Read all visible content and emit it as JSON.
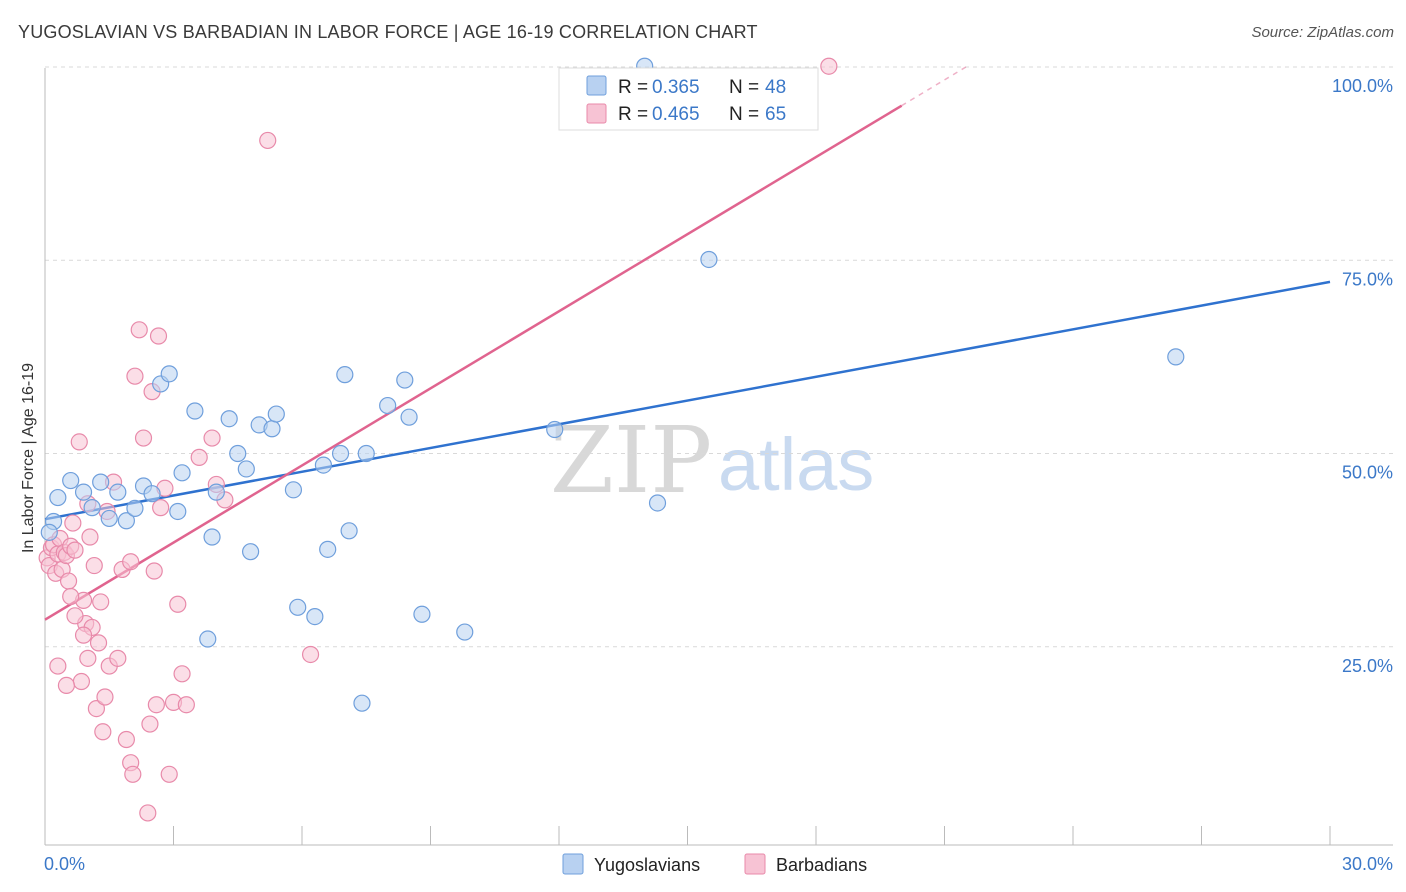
{
  "header": {
    "title": "YUGOSLAVIAN VS BARBADIAN IN LABOR FORCE | AGE 16-19 CORRELATION CHART",
    "source": "Source: ZipAtlas.com"
  },
  "watermark": {
    "zip": "ZIP",
    "atlas": "atlas"
  },
  "colors": {
    "blue_fill": "#b8d1f1",
    "blue_stroke": "#6f9fdc",
    "blue_line": "#2f72cf",
    "pink_fill": "#f7c3d4",
    "pink_stroke": "#e88aaa",
    "pink_line": "#e0648f",
    "tick_text": "#3b78c8",
    "grid": "#d9d9d9"
  },
  "chart_data": {
    "type": "scatter",
    "title": "YUGOSLAVIAN VS BARBADIAN IN LABOR FORCE | AGE 16-19 CORRELATION CHART",
    "xlabel": "",
    "ylabel": "In Labor Force | Age 16-19",
    "xlim": [
      0,
      30
    ],
    "ylim": [
      0,
      100
    ],
    "x_tick_labels": [
      "0.0%",
      "30.0%"
    ],
    "y_ticks": [
      {
        "value": 100,
        "label": "100.0%"
      },
      {
        "value": 75,
        "label": "75.0%"
      },
      {
        "value": 50,
        "label": "50.0%"
      },
      {
        "value": 25,
        "label": "25.0%"
      }
    ],
    "legend": {
      "placement": "top-center",
      "entries": [
        {
          "r_label": "R =",
          "r_value": "0.365",
          "n_label": "N =",
          "n_value": "48"
        },
        {
          "r_label": "R =",
          "r_value": "0.465",
          "n_label": "N =",
          "n_value": "65"
        }
      ]
    },
    "series": [
      {
        "name": "Yugoslavians",
        "trend": {
          "x0": 0,
          "y0": 41.5,
          "x1": 30,
          "y1": 72.2
        },
        "points": [
          [
            0.2,
            41.2
          ],
          [
            0.3,
            44.3
          ],
          [
            0.6,
            46.5
          ],
          [
            0.9,
            45.0
          ],
          [
            1.1,
            43.0
          ],
          [
            1.3,
            46.3
          ],
          [
            1.5,
            41.6
          ],
          [
            1.7,
            45.0
          ],
          [
            1.9,
            41.3
          ],
          [
            2.1,
            42.9
          ],
          [
            2.3,
            45.8
          ],
          [
            2.5,
            44.8
          ],
          [
            2.7,
            59.0
          ],
          [
            2.9,
            60.3
          ],
          [
            3.1,
            42.5
          ],
          [
            3.2,
            47.5
          ],
          [
            3.5,
            55.5
          ],
          [
            3.8,
            26.0
          ],
          [
            3.9,
            39.2
          ],
          [
            4.0,
            45.0
          ],
          [
            4.3,
            54.5
          ],
          [
            4.5,
            50.0
          ],
          [
            4.7,
            48.0
          ],
          [
            4.8,
            37.3
          ],
          [
            5.0,
            53.7
          ],
          [
            5.3,
            53.2
          ],
          [
            5.4,
            55.1
          ],
          [
            5.8,
            45.3
          ],
          [
            5.9,
            30.1
          ],
          [
            6.3,
            28.9
          ],
          [
            6.5,
            48.5
          ],
          [
            6.6,
            37.6
          ],
          [
            6.9,
            50.0
          ],
          [
            7.0,
            60.2
          ],
          [
            7.1,
            40.0
          ],
          [
            7.4,
            17.7
          ],
          [
            7.5,
            50.0
          ],
          [
            8.0,
            56.2
          ],
          [
            8.4,
            59.5
          ],
          [
            8.5,
            54.7
          ],
          [
            8.8,
            29.2
          ],
          [
            9.8,
            26.9
          ],
          [
            14.0,
            100.1
          ],
          [
            11.9,
            53.1
          ],
          [
            14.3,
            43.6
          ],
          [
            15.5,
            75.1
          ],
          [
            26.4,
            62.5
          ],
          [
            0.1,
            39.8
          ]
        ]
      },
      {
        "name": "Barbadians",
        "trend": {
          "x0": 0,
          "y0": 28.5,
          "x1": 20.0,
          "y1": 95.0,
          "dash_to_x": 21.5,
          "dash_to_y": 100.0
        },
        "points": [
          [
            0.05,
            36.5
          ],
          [
            0.1,
            35.5
          ],
          [
            0.15,
            37.8
          ],
          [
            0.2,
            38.2
          ],
          [
            0.25,
            34.5
          ],
          [
            0.3,
            37.0
          ],
          [
            0.35,
            39.0
          ],
          [
            0.4,
            35.0
          ],
          [
            0.45,
            37.2
          ],
          [
            0.5,
            36.8
          ],
          [
            0.55,
            33.5
          ],
          [
            0.6,
            38.0
          ],
          [
            0.65,
            41.0
          ],
          [
            0.7,
            37.5
          ],
          [
            0.8,
            51.5
          ],
          [
            0.85,
            20.5
          ],
          [
            0.9,
            31.0
          ],
          [
            0.95,
            28.0
          ],
          [
            1.0,
            23.5
          ],
          [
            1.05,
            39.2
          ],
          [
            1.1,
            27.5
          ],
          [
            1.2,
            17.0
          ],
          [
            1.3,
            30.8
          ],
          [
            1.35,
            14.0
          ],
          [
            1.4,
            18.5
          ],
          [
            1.5,
            22.5
          ],
          [
            1.6,
            46.3
          ],
          [
            1.7,
            23.5
          ],
          [
            1.8,
            35.0
          ],
          [
            1.9,
            13.0
          ],
          [
            2.0,
            10.0
          ],
          [
            2.05,
            8.5
          ],
          [
            2.1,
            60.0
          ],
          [
            2.2,
            66.0
          ],
          [
            2.3,
            52.0
          ],
          [
            2.4,
            3.5
          ],
          [
            2.45,
            15.0
          ],
          [
            2.5,
            58.0
          ],
          [
            2.55,
            34.8
          ],
          [
            2.6,
            17.5
          ],
          [
            2.65,
            65.2
          ],
          [
            2.7,
            43.0
          ],
          [
            2.8,
            45.5
          ],
          [
            2.9,
            8.5
          ],
          [
            3.0,
            17.8
          ],
          [
            3.1,
            30.5
          ],
          [
            3.2,
            21.5
          ],
          [
            3.3,
            17.5
          ],
          [
            3.6,
            49.5
          ],
          [
            3.9,
            52.0
          ],
          [
            4.0,
            46.0
          ],
          [
            4.2,
            44.0
          ],
          [
            0.3,
            22.5
          ],
          [
            0.5,
            20.0
          ],
          [
            0.7,
            29.0
          ],
          [
            6.2,
            24.0
          ],
          [
            5.2,
            90.5
          ],
          [
            18.3,
            100.1
          ],
          [
            1.0,
            43.5
          ],
          [
            1.15,
            35.5
          ],
          [
            1.25,
            25.5
          ],
          [
            1.45,
            42.5
          ],
          [
            0.6,
            31.5
          ],
          [
            0.9,
            26.5
          ],
          [
            2.0,
            36.0
          ]
        ]
      }
    ]
  },
  "bottom_legend": [
    "Yugoslavians",
    "Barbadians"
  ]
}
